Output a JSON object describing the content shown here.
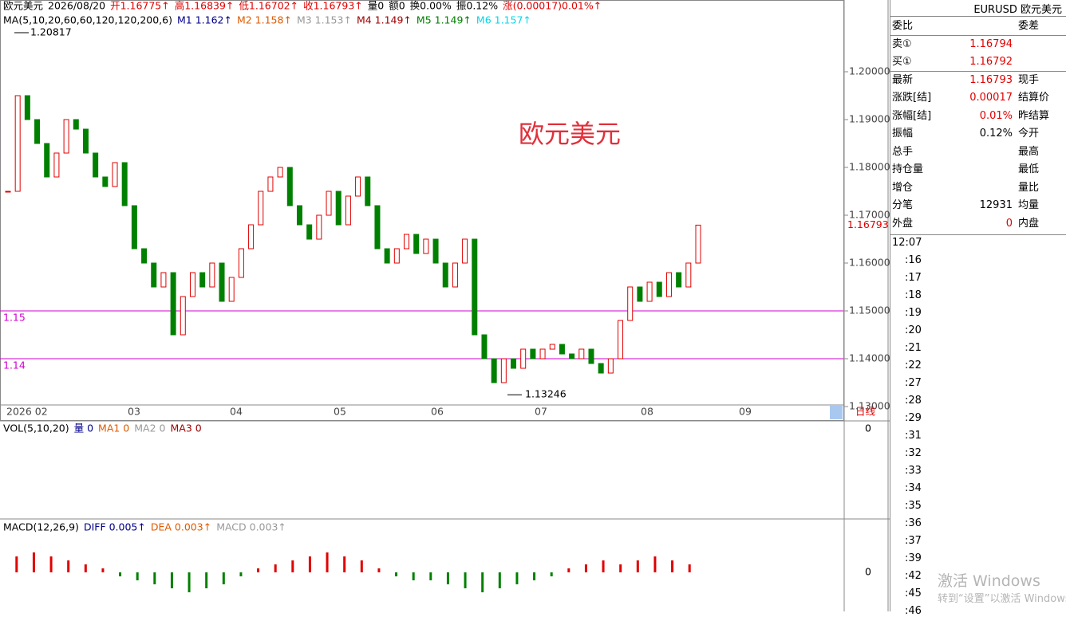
{
  "header": {
    "segments": [
      {
        "text": "欧元美元",
        "color": "#000"
      },
      {
        "text": "2026/08/20",
        "color": "#000"
      },
      {
        "text": "开1.16775↑",
        "color": "#e00000"
      },
      {
        "text": "高1.16839↑",
        "color": "#e00000"
      },
      {
        "text": "低1.16702↑",
        "color": "#e00000"
      },
      {
        "text": "收1.16793↑",
        "color": "#e00000"
      },
      {
        "text": "量0",
        "color": "#000"
      },
      {
        "text": "额0",
        "color": "#000"
      },
      {
        "text": "换0.00%",
        "color": "#000"
      },
      {
        "text": "振0.12%",
        "color": "#000"
      },
      {
        "text": "涨(0.00017)0.01%↑",
        "color": "#e00000"
      }
    ]
  },
  "ma_legend": [
    {
      "text": "MA(5,10,20,60,60,120,120,200,6)",
      "color": "#000"
    },
    {
      "text": "M1 1.162↑",
      "color": "#00008b"
    },
    {
      "text": "M2 1.158↑",
      "color": "#e05a00"
    },
    {
      "text": "M3 1.153↑",
      "color": "#999"
    },
    {
      "text": "M4 1.149↑",
      "color": "#a00000"
    },
    {
      "text": "M5 1.149↑",
      "color": "#008000"
    },
    {
      "text": "M6 1.157↑",
      "color": "#00d8e8"
    }
  ],
  "price_chart": {
    "name": "欧元美元",
    "ylim": [
      1.1305,
      1.215
    ],
    "yticks": [
      {
        "value": 1.2,
        "label": "1.20000"
      },
      {
        "value": 1.19,
        "label": "1.19000"
      },
      {
        "value": 1.18,
        "label": "1.18000"
      },
      {
        "value": 1.17,
        "label": "1.17000"
      },
      {
        "value": 1.16,
        "label": "1.16000"
      },
      {
        "value": 1.15,
        "label": "1.15000"
      },
      {
        "value": 1.14,
        "label": "1.14000"
      },
      {
        "value": 1.13,
        "label": "1.13000"
      }
    ],
    "last_price": {
      "value": 1.16793,
      "label": "1.16793"
    },
    "high_mark": {
      "value": 1.20817,
      "label": "1.20817"
    },
    "low_mark": {
      "value": 1.13246,
      "label": "1.13246"
    },
    "levels": [
      {
        "value": 1.15,
        "label": "1.15"
      },
      {
        "value": 1.14,
        "label": "1.14"
      }
    ],
    "months": [
      "2026 02",
      "03",
      "04",
      "05",
      "06",
      "07",
      "08",
      "09"
    ],
    "period": "日线",
    "closes": [
      1.175,
      1.195,
      1.19,
      1.185,
      1.178,
      1.183,
      1.19,
      1.188,
      1.183,
      1.178,
      1.176,
      1.181,
      1.172,
      1.163,
      1.16,
      1.155,
      1.158,
      1.145,
      1.153,
      1.158,
      1.155,
      1.16,
      1.152,
      1.157,
      1.163,
      1.168,
      1.175,
      1.178,
      1.18,
      1.172,
      1.168,
      1.165,
      1.17,
      1.175,
      1.168,
      1.174,
      1.178,
      1.172,
      1.163,
      1.16,
      1.163,
      1.166,
      1.162,
      1.165,
      1.16,
      1.155,
      1.16,
      1.165,
      1.145,
      1.14,
      1.135,
      1.14,
      1.138,
      1.142,
      1.14,
      1.142,
      1.143,
      1.141,
      1.14,
      1.142,
      1.139,
      1.137,
      1.14,
      1.148,
      1.155,
      1.152,
      1.156,
      1.153,
      1.158,
      1.155,
      1.16,
      1.16793
    ]
  },
  "vol_panel": {
    "legend": [
      {
        "text": "VOL(5,10,20)",
        "color": "#000"
      },
      {
        "text": "量 0",
        "color": "#00008b"
      },
      {
        "text": "MA1 0",
        "color": "#e05a00"
      },
      {
        "text": "MA2 0",
        "color": "#999"
      },
      {
        "text": "MA3 0",
        "color": "#a00000"
      }
    ],
    "axis_label": "0"
  },
  "macd_panel": {
    "legend": [
      {
        "text": "MACD(12,26,9)",
        "color": "#000"
      },
      {
        "text": "DIFF 0.005↑",
        "color": "#00008b"
      },
      {
        "text": "DEA 0.003↑",
        "color": "#e05a00"
      },
      {
        "text": "MACD 0.003↑",
        "color": "#999"
      }
    ],
    "axis_label": "0",
    "hist": [
      4,
      5,
      4,
      3,
      2,
      1,
      -1,
      -2,
      -3,
      -4,
      -5,
      -4,
      -3,
      -1,
      1,
      2,
      3,
      4,
      5,
      4,
      3,
      1,
      -1,
      -2,
      -2,
      -3,
      -4,
      -5,
      -4,
      -3,
      -2,
      -1,
      1,
      2,
      3,
      2,
      3,
      4,
      3,
      2
    ]
  },
  "quote_panel": {
    "title": "EURUSD 欧元美元",
    "rows": [
      [
        "委比",
        "",
        "委差"
      ],
      [
        "卖①",
        "1.16794",
        ""
      ],
      [
        "买①",
        "1.16792",
        ""
      ],
      [
        "最新",
        "1.16793",
        "现手"
      ],
      [
        "涨跌[结]",
        "0.00017",
        "结算价"
      ],
      [
        "涨幅[结]",
        "0.01%",
        "昨结算"
      ],
      [
        "振幅",
        "0.12%",
        "今开"
      ],
      [
        "总手",
        "",
        "最高"
      ],
      [
        "持仓量",
        "",
        "最低"
      ],
      [
        "增仓",
        "",
        "量比"
      ],
      [
        "分笔",
        "12931",
        "均量"
      ],
      [
        "外盘",
        "0",
        "内盘"
      ]
    ],
    "times": [
      "12:07",
      ":16",
      ":17",
      ":18",
      ":19",
      ":20",
      ":21",
      ":22",
      ":27",
      ":28",
      ":29",
      ":31",
      ":32",
      ":33",
      ":34",
      ":35",
      ":36",
      ":37",
      ":39",
      ":42",
      ":45",
      ":46"
    ]
  },
  "watermark": {
    "line1": "激活 Windows",
    "line2": "转到“设置”以激活 Windows。"
  }
}
